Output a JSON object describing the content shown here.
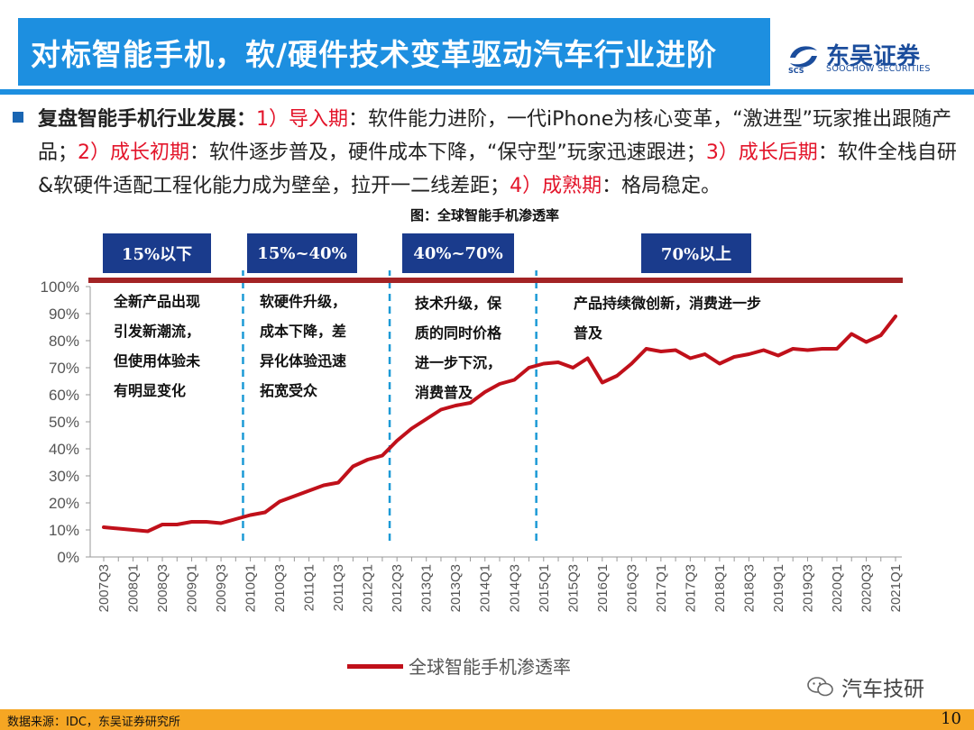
{
  "header": {
    "title": "对标智能手机，软/硬件技术变革驱动汽车行业进阶",
    "logo_cn": "东吴证券",
    "logo_en": "SOOCHOW SECURITIES",
    "logo_abbr": "SCS",
    "brand_color": "#1d8fe0"
  },
  "summary": {
    "lead": "复盘智能手机行业发展：",
    "p1_label": "1）导入期",
    "p1_text": "：软件能力进阶，一代iPhone为核心变革，“激进型”玩家推出跟随产品；",
    "p2_label": "2）成长初期",
    "p2_text": "：软件逐步普及，硬件成本下降，“保守型”玩家迅速跟进；",
    "p3_label": "3）成长后期",
    "p3_text": "：软件全栈自研&软硬件适配工程化能力成为壁垒，拉开一二线差距；",
    "p4_label": "4）成熟期",
    "p4_text": "：格局稳定。"
  },
  "phases": [
    {
      "label": "15%以下"
    },
    {
      "label": "15%~40%"
    },
    {
      "label": "40%~70%"
    },
    {
      "label": "70%以上"
    }
  ],
  "annotations": [
    {
      "lines": [
        "全新产品出现",
        "引发新潮流，",
        "但使用体验未",
        "有明显变化"
      ]
    },
    {
      "lines": [
        "软硬件升级，",
        "成本下降，差",
        "异化体验迅速",
        "拓宽受众"
      ]
    },
    {
      "lines": [
        "技术升级，保",
        "质的同时价格",
        "进一步下沉，",
        "消费普及"
      ]
    },
    {
      "lines": [
        "产品持续微创新，消费进一步",
        "普及"
      ]
    }
  ],
  "chart_data": {
    "type": "line",
    "title": "图：全球智能手机渗透率",
    "xlabel": "",
    "ylabel": "",
    "ylim": [
      0,
      100
    ],
    "yticks": [
      "0%",
      "10%",
      "20%",
      "30%",
      "40%",
      "50%",
      "60%",
      "70%",
      "80%",
      "90%",
      "100%"
    ],
    "x": [
      "2007Q3",
      "2007Q4",
      "2008Q1",
      "2008Q2",
      "2008Q3",
      "2008Q4",
      "2009Q1",
      "2009Q2",
      "2009Q3",
      "2009Q4",
      "2010Q1",
      "2010Q2",
      "2010Q3",
      "2010Q4",
      "2011Q1",
      "2011Q2",
      "2011Q3",
      "2011Q4",
      "2012Q1",
      "2012Q2",
      "2012Q3",
      "2012Q4",
      "2013Q1",
      "2013Q2",
      "2013Q3",
      "2013Q4",
      "2014Q1",
      "2014Q2",
      "2014Q3",
      "2014Q4",
      "2015Q1",
      "2015Q2",
      "2015Q3",
      "2015Q4",
      "2016Q1",
      "2016Q2",
      "2016Q3",
      "2016Q4",
      "2017Q1",
      "2017Q2",
      "2017Q3",
      "2017Q4",
      "2018Q1",
      "2018Q2",
      "2018Q3",
      "2018Q4",
      "2019Q1",
      "2019Q2",
      "2019Q3",
      "2019Q4",
      "2020Q1",
      "2020Q2",
      "2020Q3",
      "2020Q4",
      "2021Q1"
    ],
    "xtick_labels": [
      "2007Q3",
      "2008Q1",
      "2008Q3",
      "2009Q1",
      "2009Q3",
      "2010Q1",
      "2010Q3",
      "2011Q1",
      "2011Q3",
      "2012Q1",
      "2012Q3",
      "2013Q1",
      "2013Q3",
      "2014Q1",
      "2014Q3",
      "2015Q1",
      "2015Q3",
      "2016Q1",
      "2016Q3",
      "2017Q1",
      "2017Q3",
      "2018Q1",
      "2018Q3",
      "2019Q1",
      "2019Q3",
      "2020Q1",
      "2020Q3",
      "2021Q1"
    ],
    "series": [
      {
        "name": "全球智能手机渗透率",
        "color": "#c0101a",
        "values": [
          11,
          10.5,
          10,
          9.5,
          12,
          12,
          13,
          13,
          12.5,
          14,
          15.5,
          16.5,
          20.5,
          22.5,
          24.5,
          26.5,
          27.5,
          33.5,
          36,
          37.5,
          43,
          47.5,
          51,
          54.5,
          56,
          57,
          61,
          64,
          65.5,
          70,
          71.5,
          72,
          70,
          73.5,
          64.5,
          67,
          71.5,
          77,
          76,
          76.5,
          73.5,
          75,
          71.5,
          74,
          75,
          76.5,
          74.5,
          77,
          76.5,
          77,
          77,
          82.5,
          79.5,
          82,
          89
        ]
      }
    ],
    "phase_dividers_after": [
      "2009Q4",
      "2012Q2",
      "2014Q4"
    ],
    "legend_position": "bottom",
    "grid": false
  },
  "watermark": "汽车技研",
  "footer": {
    "source": "数据来源：IDC，东吴证券研究所",
    "page": "10",
    "color": "#f5a623"
  }
}
